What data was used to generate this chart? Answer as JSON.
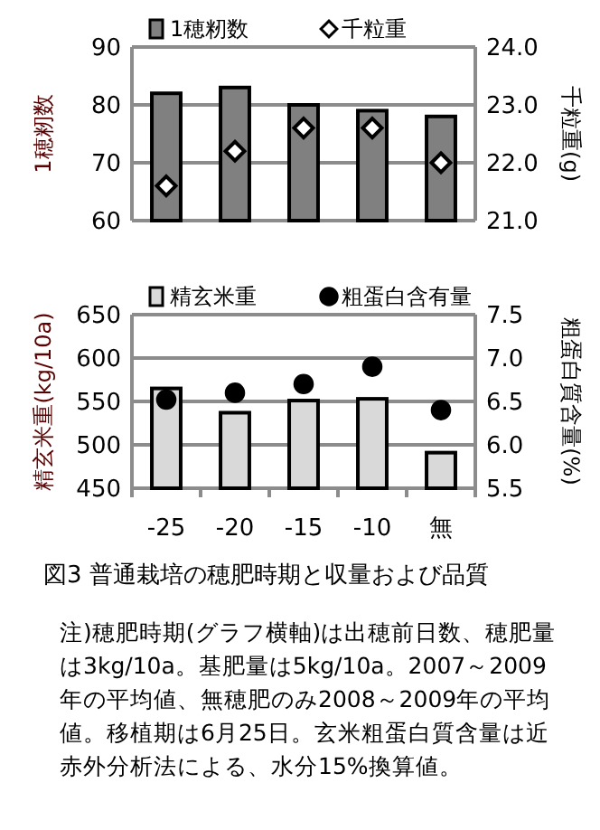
{
  "chart_data": [
    {
      "type": "bar",
      "categories": [
        null,
        null,
        null,
        null,
        null
      ],
      "ylabel": "1穂籾数",
      "y2label": "千粒重(g)",
      "ylim": [
        60,
        90
      ],
      "yticks": [
        60,
        70,
        80,
        90
      ],
      "y2lim": [
        21.0,
        24.0
      ],
      "y2ticks": [
        {
          "value": 21,
          "label": "21.0"
        },
        {
          "value": 22,
          "label": "22.0"
        },
        {
          "value": 23,
          "label": "23.0"
        },
        {
          "value": 24,
          "label": "24.0"
        }
      ],
      "grid": "y",
      "legend": "top",
      "tick_labels": "y",
      "series": [
        {
          "name": "1穂籾数",
          "color": "#808080",
          "values": [
            82,
            83,
            80,
            79,
            78
          ]
        },
        {
          "name": "千粒重",
          "type": "scatter",
          "axis": "y2",
          "marker": "diamond",
          "color": "#ffffff",
          "values": [
            21.6,
            22.2,
            22.6,
            22.6,
            22.0
          ]
        }
      ]
    },
    {
      "type": "bar",
      "categories": [
        "-25",
        "-20",
        "-15",
        "-10",
        "無"
      ],
      "ylabel": "精玄米重(kg/10a)",
      "y2label": "粗蛋白質含量(%)",
      "ylim": [
        450,
        650
      ],
      "yticks": [
        450,
        500,
        550,
        600,
        650
      ],
      "y2lim": [
        5.5,
        7.5
      ],
      "y2ticks": [
        {
          "value": 5.5,
          "label": "5.5"
        },
        {
          "value": 6,
          "label": "6.0"
        },
        {
          "value": 6.5,
          "label": "6.5"
        },
        {
          "value": 7,
          "label": "7.0"
        },
        {
          "value": 7.5,
          "label": "7.5"
        }
      ],
      "grid": "y",
      "legend": "top",
      "title": "図3  普通栽培の穂肥時期と収量および品質",
      "annotations": [
        "注)穂肥時期(グラフ横軸)は出穂前日数、穂肥量は3kg/10a。基肥量は5kg/10a。2007～2009年の平均値、無穂肥のみ2008～2009年の平均値。移植期は6月25日。玄米粗蛋白質含量は近赤外分析法による、水分15%換算値。"
      ],
      "series": [
        {
          "name": "精玄米重",
          "color": "#d9d9d9",
          "values": [
            565,
            537,
            551,
            553,
            491
          ]
        },
        {
          "name": "粗蛋白含有量",
          "type": "scatter",
          "axis": "y2",
          "marker": "circle",
          "color": "#000000",
          "values": [
            6.52,
            6.6,
            6.7,
            6.9,
            6.4
          ]
        }
      ]
    }
  ]
}
